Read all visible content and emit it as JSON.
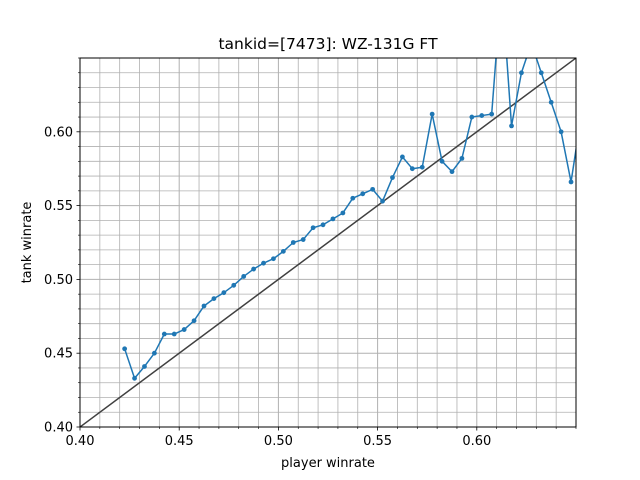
{
  "chart_data": {
    "type": "line",
    "title": "tankid=[7473]: WZ-131G FT",
    "xlabel": "player winrate",
    "ylabel": "tank winrate",
    "xlim": [
      0.4,
      0.65
    ],
    "ylim": [
      0.4,
      0.65
    ],
    "major_xticks": [
      0.4,
      0.45,
      0.5,
      0.55,
      0.6
    ],
    "major_yticks": [
      0.4,
      0.45,
      0.5,
      0.55,
      0.6
    ],
    "xtick_labels": [
      "0.40",
      "0.45",
      "0.50",
      "0.55",
      "0.60"
    ],
    "ytick_labels": [
      "0.40",
      "0.45",
      "0.50",
      "0.55",
      "0.60"
    ],
    "minor_step": 0.01,
    "grid": true,
    "reference_line": {
      "slope": 1,
      "intercept": 0,
      "color": "#404040"
    },
    "series": [
      {
        "color": "#1f77b4",
        "marker": "circle",
        "x": [
          0.4225,
          0.4275,
          0.4325,
          0.4375,
          0.4425,
          0.4475,
          0.4525,
          0.4575,
          0.4625,
          0.4675,
          0.4725,
          0.4775,
          0.4825,
          0.4875,
          0.4925,
          0.4975,
          0.5025,
          0.5075,
          0.5125,
          0.5175,
          0.5225,
          0.5275,
          0.5325,
          0.5375,
          0.5425,
          0.5475,
          0.5525,
          0.5575,
          0.5625,
          0.5675,
          0.5725,
          0.5775,
          0.5825,
          0.5875,
          0.5925,
          0.5975,
          0.6025,
          0.6075,
          0.6125,
          0.6175,
          0.6225,
          0.6275,
          0.6325,
          0.6375,
          0.6425,
          0.6475,
          0.6525
        ],
        "y": [
          0.453,
          0.433,
          0.441,
          0.45,
          0.463,
          0.463,
          0.466,
          0.472,
          0.482,
          0.487,
          0.491,
          0.496,
          0.502,
          0.507,
          0.511,
          0.514,
          0.519,
          0.525,
          0.527,
          0.535,
          0.537,
          0.541,
          0.545,
          0.555,
          0.558,
          0.561,
          0.553,
          0.569,
          0.583,
          0.575,
          0.576,
          0.612,
          0.58,
          0.573,
          0.582,
          0.61,
          0.611,
          0.612,
          0.7,
          0.604,
          0.64,
          0.66,
          0.64,
          0.62,
          0.6,
          0.566,
          0.61
        ]
      }
    ]
  }
}
